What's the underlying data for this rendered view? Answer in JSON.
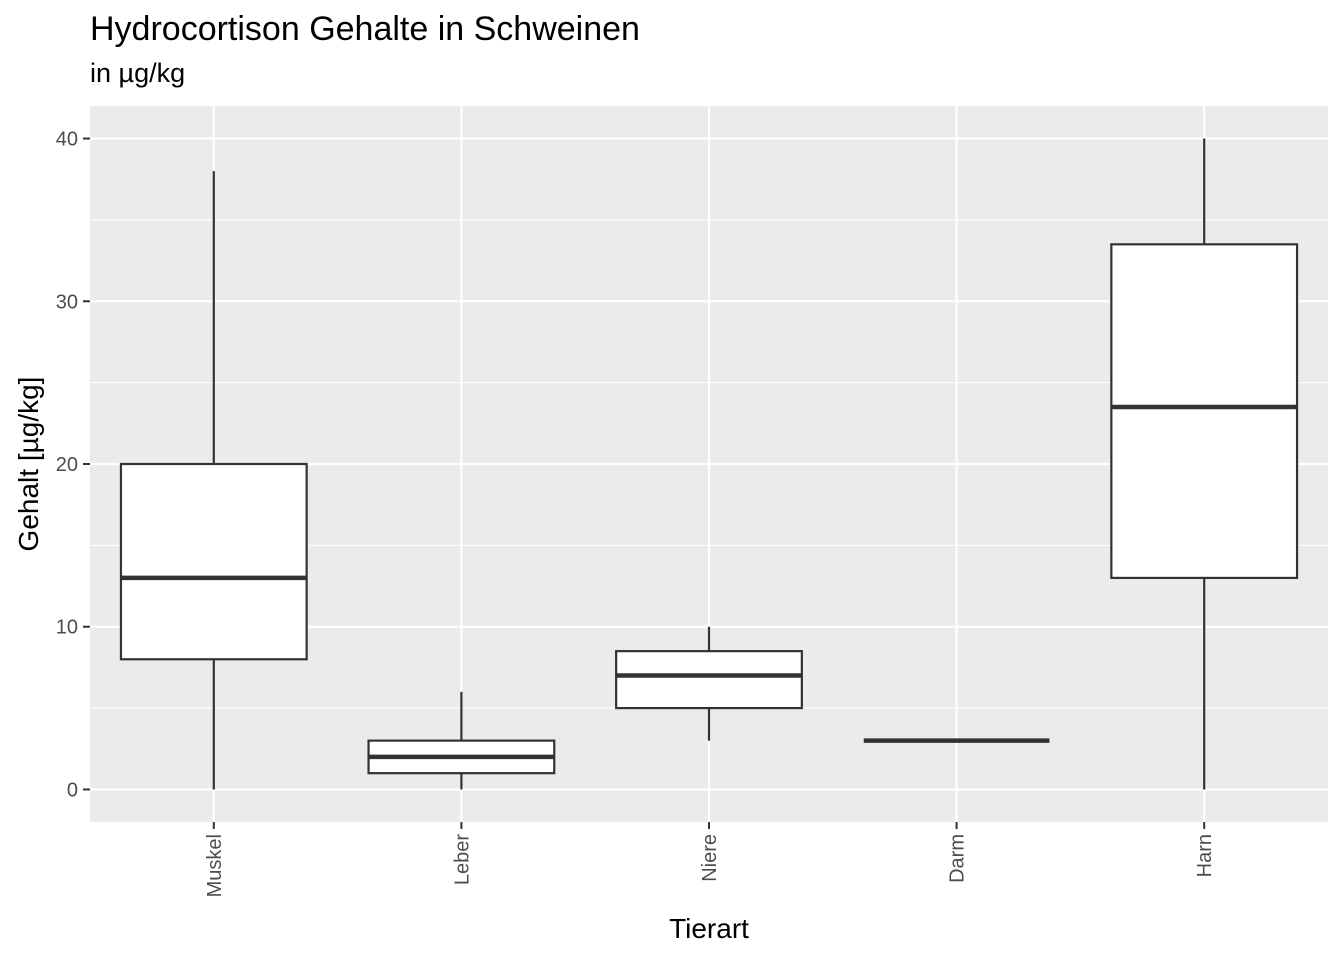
{
  "chart_data": {
    "type": "boxplot",
    "title": "Hydrocortison Gehalte in Schweinen",
    "subtitle": "in µg/kg",
    "xlabel": "Tierart",
    "ylabel": "Gehalt [µg/kg]",
    "ylim": [
      -2,
      42
    ],
    "yticks": [
      0,
      10,
      20,
      30,
      40
    ],
    "grid": true,
    "categories": [
      "Muskel",
      "Leber",
      "Niere",
      "Darm",
      "Harn"
    ],
    "boxes": [
      {
        "category": "Muskel",
        "min": 0,
        "q1": 8,
        "median": 13,
        "q3": 20,
        "max": 38
      },
      {
        "category": "Leber",
        "min": 0,
        "q1": 1,
        "median": 2,
        "q3": 3,
        "max": 6
      },
      {
        "category": "Niere",
        "min": 3,
        "q1": 5,
        "median": 7,
        "q3": 8.5,
        "max": 10
      },
      {
        "category": "Darm",
        "min": 3,
        "q1": 3,
        "median": 3,
        "q3": 3,
        "max": 3
      },
      {
        "category": "Harn",
        "min": 0,
        "q1": 13,
        "median": 23.5,
        "q3": 33.5,
        "max": 40
      }
    ],
    "colors": {
      "panel": "#ebebeb",
      "grid": "#ffffff",
      "box_fill": "#ffffff",
      "box_line": "#333333"
    }
  }
}
